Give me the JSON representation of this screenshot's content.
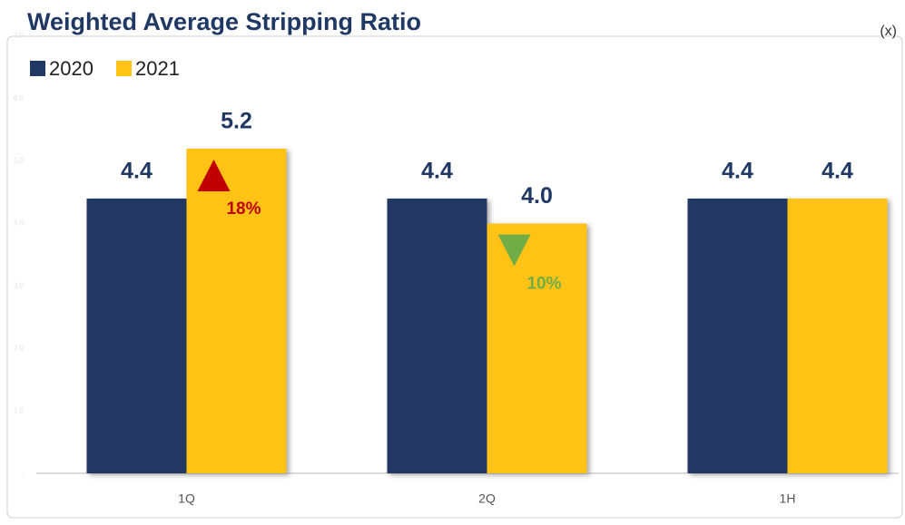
{
  "chart_data": {
    "type": "bar",
    "title": "Weighted Average Stripping Ratio",
    "unit_label": "(x)",
    "categories": [
      "1Q",
      "2Q",
      "1H"
    ],
    "series": [
      {
        "name": "2020",
        "color": "#203864",
        "values": [
          4.4,
          4.4,
          4.4
        ]
      },
      {
        "name": "2021",
        "color": "#ffc316",
        "values": [
          5.2,
          4.0,
          4.4
        ],
        "value_labels": [
          "5.2",
          "4.0",
          "4.4"
        ]
      }
    ],
    "ylim": [
      0,
      7
    ],
    "yticks": [
      {
        "value": 0,
        "label": "-"
      },
      {
        "value": 1,
        "label": "1.0"
      },
      {
        "value": 2,
        "label": "2.0"
      },
      {
        "value": 3,
        "label": "3.0"
      },
      {
        "value": 4,
        "label": "4.0"
      },
      {
        "value": 5,
        "label": "5.0"
      },
      {
        "value": 6,
        "label": "6.0"
      },
      {
        "value": 7,
        "label": "7.0"
      }
    ],
    "annotations": [
      {
        "category": "1Q",
        "text": "18%",
        "direction": "up",
        "color": "#c00000"
      },
      {
        "category": "2Q",
        "text": "10%",
        "direction": "down",
        "color": "#70ad47"
      }
    ]
  }
}
